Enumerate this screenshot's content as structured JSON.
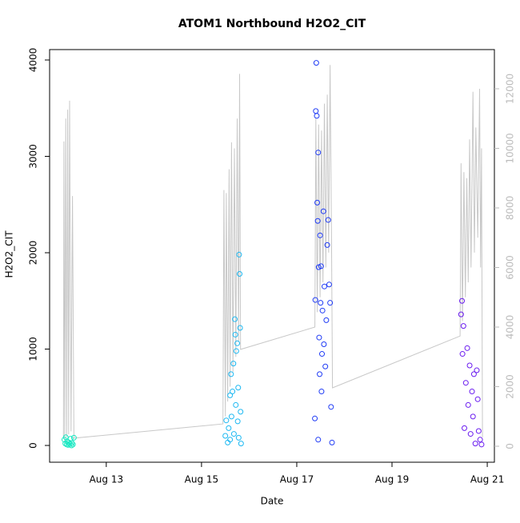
{
  "chart_data": {
    "type": "scatter",
    "title": "ATOM1 Northbound H2O2_CIT",
    "x_label": "Date",
    "y_label": "H2O2_CIT",
    "xlim": [
      11.81,
      21.15
    ],
    "ylim": [
      -174,
      4108
    ],
    "y2lim": [
      -537,
      13315
    ],
    "xticks": [
      {
        "value": 13,
        "label": "Aug 13"
      },
      {
        "value": 15,
        "label": "Aug 15"
      },
      {
        "value": 17,
        "label": "Aug 17"
      },
      {
        "value": 19,
        "label": "Aug 19"
      },
      {
        "value": 21,
        "label": "Aug 21"
      }
    ],
    "yticks": [
      0,
      1000,
      2000,
      3000,
      4000
    ],
    "y2ticks": [
      0,
      2000,
      4000,
      6000,
      8000,
      10000,
      12000
    ],
    "series": [
      {
        "color": "#19e8c2",
        "x": [
          12.12,
          12.14,
          12.15,
          12.17,
          12.18,
          12.2,
          12.22,
          12.23,
          12.25,
          12.27,
          12.28,
          12.3,
          12.32
        ],
        "values": [
          60,
          20,
          85,
          10,
          40,
          5,
          30,
          15,
          70,
          0,
          25,
          10,
          80
        ]
      },
      {
        "color": "#1cb8f2",
        "x": [
          15.5,
          15.52,
          15.55,
          15.57,
          15.6,
          15.6,
          15.62,
          15.63,
          15.65,
          15.67,
          15.68,
          15.7,
          15.71,
          15.72,
          15.73,
          15.75,
          15.76,
          15.77,
          15.78,
          15.79,
          15.8,
          15.81,
          15.82,
          15.83
        ],
        "values": [
          100,
          260,
          30,
          180,
          520,
          60,
          740,
          300,
          560,
          850,
          120,
          1310,
          1150,
          420,
          980,
          1060,
          250,
          600,
          80,
          1980,
          1780,
          1220,
          350,
          20
        ]
      },
      {
        "color": "#1f3bf5",
        "x": [
          17.38,
          17.39,
          17.4,
          17.41,
          17.42,
          17.43,
          17.44,
          17.45,
          17.45,
          17.46,
          17.47,
          17.48,
          17.49,
          17.5,
          17.51,
          17.52,
          17.53,
          17.54,
          17.56,
          17.57,
          17.58,
          17.6,
          17.62,
          17.64,
          17.66,
          17.68,
          17.7,
          17.72,
          17.74
        ],
        "values": [
          280,
          1510,
          3470,
          3970,
          3420,
          2520,
          2330,
          60,
          3040,
          1850,
          1120,
          740,
          2180,
          1480,
          1860,
          560,
          950,
          1400,
          2430,
          1050,
          1650,
          820,
          1300,
          2080,
          2340,
          1670,
          1480,
          400,
          30
        ]
      },
      {
        "color": "#6a1bf0",
        "x": [
          20.45,
          20.47,
          20.48,
          20.5,
          20.52,
          20.55,
          20.58,
          20.6,
          20.63,
          20.65,
          20.68,
          20.7,
          20.72,
          20.75,
          20.78,
          20.8,
          20.82,
          20.85,
          20.88
        ],
        "values": [
          1360,
          1500,
          950,
          1240,
          180,
          650,
          1010,
          420,
          830,
          120,
          560,
          300,
          740,
          20,
          780,
          480,
          150,
          60,
          10
        ]
      }
    ],
    "line": {
      "type": "line",
      "axis": "y2",
      "color": "#c8c8c8",
      "x": [
        12.1,
        12.11,
        12.13,
        12.15,
        12.17,
        12.19,
        12.21,
        12.23,
        12.26,
        12.29,
        12.32,
        15.45,
        15.47,
        15.5,
        15.52,
        15.55,
        15.58,
        15.6,
        15.63,
        15.66,
        15.69,
        15.72,
        15.75,
        15.78,
        15.8,
        15.82,
        17.38,
        17.4,
        17.43,
        17.46,
        17.49,
        17.52,
        17.55,
        17.58,
        17.61,
        17.64,
        17.67,
        17.7,
        17.73,
        17.75,
        20.43,
        20.45,
        20.48,
        20.51,
        20.54,
        20.57,
        20.6,
        20.63,
        20.66,
        20.7,
        20.73,
        20.76,
        20.8,
        20.84,
        20.86,
        20.88,
        20.9
      ],
      "values": [
        300,
        10230,
        200,
        11000,
        300,
        11300,
        400,
        11600,
        500,
        8400,
        270,
        750,
        8600,
        1000,
        8500,
        1500,
        9300,
        2000,
        10200,
        2500,
        10000,
        3000,
        11000,
        3500,
        12500,
        3250,
        4000,
        11000,
        4500,
        10800,
        5000,
        10600,
        5500,
        11500,
        6000,
        11800,
        6500,
        12800,
        7000,
        1960,
        3700,
        9500,
        4200,
        9200,
        5000,
        9000,
        5500,
        10300,
        6000,
        11900,
        6500,
        10700,
        7000,
        12000,
        6000,
        10000,
        300
      ]
    }
  }
}
